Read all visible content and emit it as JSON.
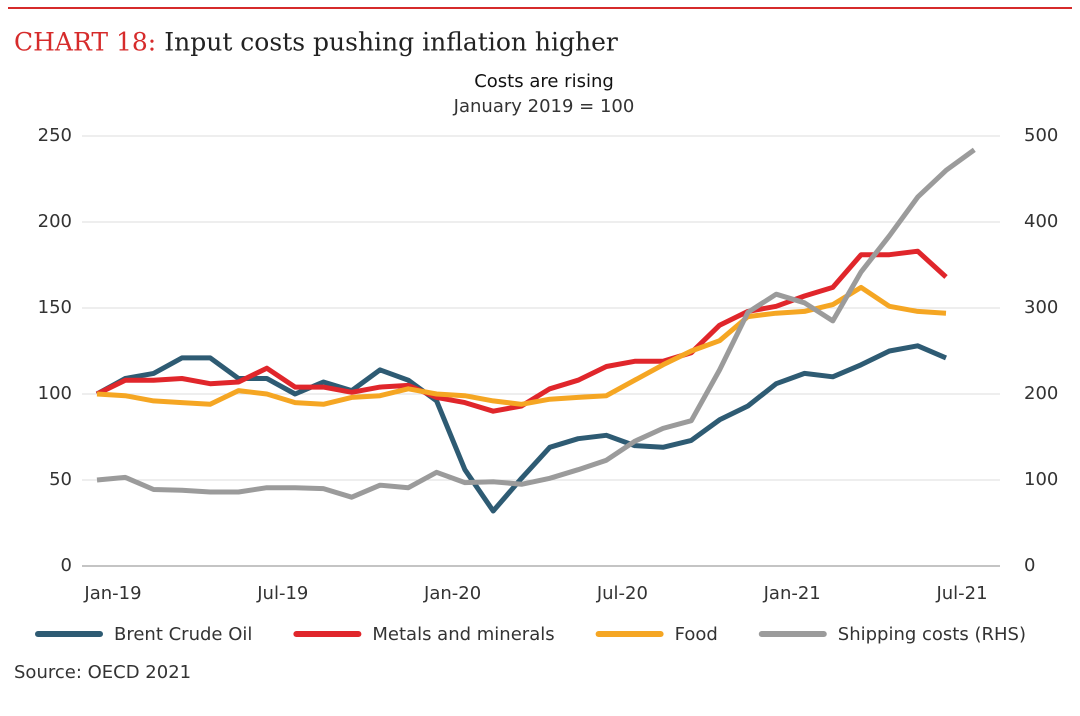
{
  "chart_data": {
    "type": "line",
    "title_prefix": "CHART 18:",
    "title": "Input costs pushing inflation higher",
    "subtitle": "Costs are rising",
    "subtitle2": "January 2019 = 100",
    "source": "Source: OECD 2021",
    "categories": [
      "Jan-19",
      null,
      null,
      null,
      null,
      null,
      "Jul-19",
      null,
      null,
      null,
      null,
      null,
      "Jan-20",
      null,
      null,
      null,
      null,
      null,
      "Jul-20",
      null,
      null,
      null,
      null,
      null,
      "Jan-21",
      null,
      null,
      null,
      null,
      null,
      "Jul-21",
      null
    ],
    "ylim": [
      0,
      250
    ],
    "yticks": [
      0,
      50,
      100,
      150,
      200,
      250
    ],
    "y2lim": [
      0,
      500
    ],
    "y2ticks": [
      0,
      100,
      200,
      300,
      400,
      500
    ],
    "grid": true,
    "legend": "bottom",
    "series": [
      {
        "name": "Brent Crude Oil",
        "color": "#2e5b73",
        "values": [
          100,
          109,
          112,
          121,
          121,
          109,
          109,
          100,
          107,
          102,
          114,
          108,
          96,
          56,
          32,
          51,
          69,
          74,
          76,
          70,
          69,
          73,
          85,
          93,
          106,
          112,
          110,
          117,
          125,
          128,
          121,
          null
        ]
      },
      {
        "name": "Metals and minerals",
        "color": "#e0262b",
        "values": [
          100,
          108,
          108,
          109,
          106,
          107,
          115,
          104,
          104,
          101,
          104,
          105,
          98,
          95,
          90,
          93,
          103,
          108,
          116,
          119,
          119,
          124,
          140,
          148,
          151,
          157,
          162,
          181,
          181,
          183,
          168,
          null
        ]
      },
      {
        "name": "Food",
        "color": "#f5a623",
        "values": [
          100,
          99,
          96,
          95,
          94,
          102,
          100,
          95,
          94,
          98,
          99,
          103,
          100,
          99,
          96,
          94,
          97,
          98,
          99,
          108,
          117,
          125,
          131,
          145,
          147,
          148,
          152,
          162,
          151,
          148,
          147,
          null
        ]
      },
      {
        "name": "Shipping costs (RHS)",
        "color": "#9b9b9b",
        "axis": "y2",
        "values": [
          100,
          103,
          89,
          88,
          86,
          86,
          91,
          91,
          90,
          80,
          94,
          91,
          109,
          97,
          98,
          95,
          102,
          112,
          123,
          145,
          160,
          169,
          228,
          295,
          316,
          306,
          285,
          342,
          384,
          429,
          460,
          484
        ]
      }
    ]
  }
}
